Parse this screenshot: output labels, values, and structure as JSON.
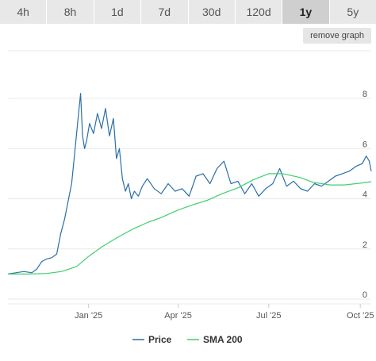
{
  "tabs": [
    {
      "label": "4h",
      "active": false
    },
    {
      "label": "8h",
      "active": false
    },
    {
      "label": "1d",
      "active": false
    },
    {
      "label": "7d",
      "active": false
    },
    {
      "label": "30d",
      "active": false
    },
    {
      "label": "120d",
      "active": false
    },
    {
      "label": "1y",
      "active": true
    },
    {
      "label": "5y",
      "active": false
    }
  ],
  "remove_graph_label": "remove graph",
  "colors": {
    "price": "#2a6fa8",
    "sma": "#3ecf6e"
  },
  "chart_data": {
    "type": "line",
    "title": "",
    "xlabel": "",
    "ylabel": "",
    "ylim": [
      0,
      8
    ],
    "yticks": [
      "0",
      "2",
      "4",
      "6",
      "8"
    ],
    "xrange": [
      "2024-10-12",
      "2025-10-12"
    ],
    "xticks": [
      {
        "label": "Jan '25",
        "date": "2025-01-01"
      },
      {
        "label": "Apr '25",
        "date": "2025-04-01"
      },
      {
        "label": "Jul '25",
        "date": "2025-07-01"
      },
      {
        "label": "Oct '25",
        "date": "2025-10-01"
      }
    ],
    "grid": true,
    "legend": "bottom-center",
    "series": [
      {
        "name": "Price",
        "x": [
          "2024-10-12",
          "2024-10-20",
          "2024-10-28",
          "2024-11-05",
          "2024-11-10",
          "2024-11-15",
          "2024-11-20",
          "2024-11-25",
          "2024-11-30",
          "2024-12-04",
          "2024-12-08",
          "2024-12-12",
          "2024-12-15",
          "2024-12-18",
          "2024-12-21",
          "2024-12-24",
          "2024-12-26",
          "2024-12-28",
          "2024-12-30",
          "2025-01-02",
          "2025-01-06",
          "2025-01-10",
          "2025-01-14",
          "2025-01-18",
          "2025-01-22",
          "2025-01-26",
          "2025-01-29",
          "2025-02-01",
          "2025-02-04",
          "2025-02-07",
          "2025-02-10",
          "2025-02-13",
          "2025-02-16",
          "2025-02-20",
          "2025-02-24",
          "2025-03-01",
          "2025-03-08",
          "2025-03-15",
          "2025-03-22",
          "2025-03-29",
          "2025-04-05",
          "2025-04-12",
          "2025-04-19",
          "2025-04-26",
          "2025-05-03",
          "2025-05-10",
          "2025-05-17",
          "2025-05-24",
          "2025-05-31",
          "2025-06-07",
          "2025-06-14",
          "2025-06-21",
          "2025-06-28",
          "2025-07-05",
          "2025-07-12",
          "2025-07-19",
          "2025-07-26",
          "2025-08-02",
          "2025-08-09",
          "2025-08-16",
          "2025-08-23",
          "2025-08-30",
          "2025-09-06",
          "2025-09-13",
          "2025-09-20",
          "2025-09-27",
          "2025-10-03",
          "2025-10-07",
          "2025-10-10",
          "2025-10-12"
        ],
        "values": [
          1.0,
          1.05,
          1.1,
          1.05,
          1.2,
          1.5,
          1.6,
          1.65,
          1.8,
          2.6,
          3.2,
          4.0,
          4.6,
          5.8,
          7.0,
          8.2,
          6.5,
          6.0,
          6.3,
          7.0,
          6.6,
          7.4,
          6.8,
          7.6,
          6.5,
          7.2,
          5.6,
          6.0,
          4.8,
          4.3,
          4.6,
          4.0,
          4.3,
          4.1,
          4.5,
          4.8,
          4.4,
          4.2,
          4.6,
          4.3,
          4.4,
          4.1,
          4.9,
          5.0,
          4.6,
          5.2,
          5.5,
          4.6,
          4.7,
          4.2,
          4.6,
          4.1,
          4.4,
          4.6,
          5.2,
          4.5,
          4.7,
          4.4,
          4.3,
          4.6,
          4.5,
          4.7,
          4.9,
          5.0,
          5.1,
          5.3,
          5.4,
          5.7,
          5.5,
          5.1
        ]
      },
      {
        "name": "SMA 200",
        "x": [
          "2024-10-12",
          "2024-11-01",
          "2024-11-20",
          "2024-12-05",
          "2024-12-20",
          "2025-01-01",
          "2025-01-15",
          "2025-02-01",
          "2025-02-15",
          "2025-03-01",
          "2025-03-15",
          "2025-04-01",
          "2025-04-15",
          "2025-05-01",
          "2025-05-15",
          "2025-06-01",
          "2025-06-15",
          "2025-07-01",
          "2025-07-15",
          "2025-08-01",
          "2025-08-15",
          "2025-09-01",
          "2025-09-15",
          "2025-10-01",
          "2025-10-12"
        ],
        "values": [
          1.0,
          1.0,
          1.02,
          1.1,
          1.3,
          1.7,
          2.1,
          2.5,
          2.8,
          3.05,
          3.25,
          3.55,
          3.75,
          3.95,
          4.2,
          4.45,
          4.75,
          5.0,
          5.0,
          4.85,
          4.65,
          4.55,
          4.55,
          4.62,
          4.68
        ]
      }
    ]
  }
}
